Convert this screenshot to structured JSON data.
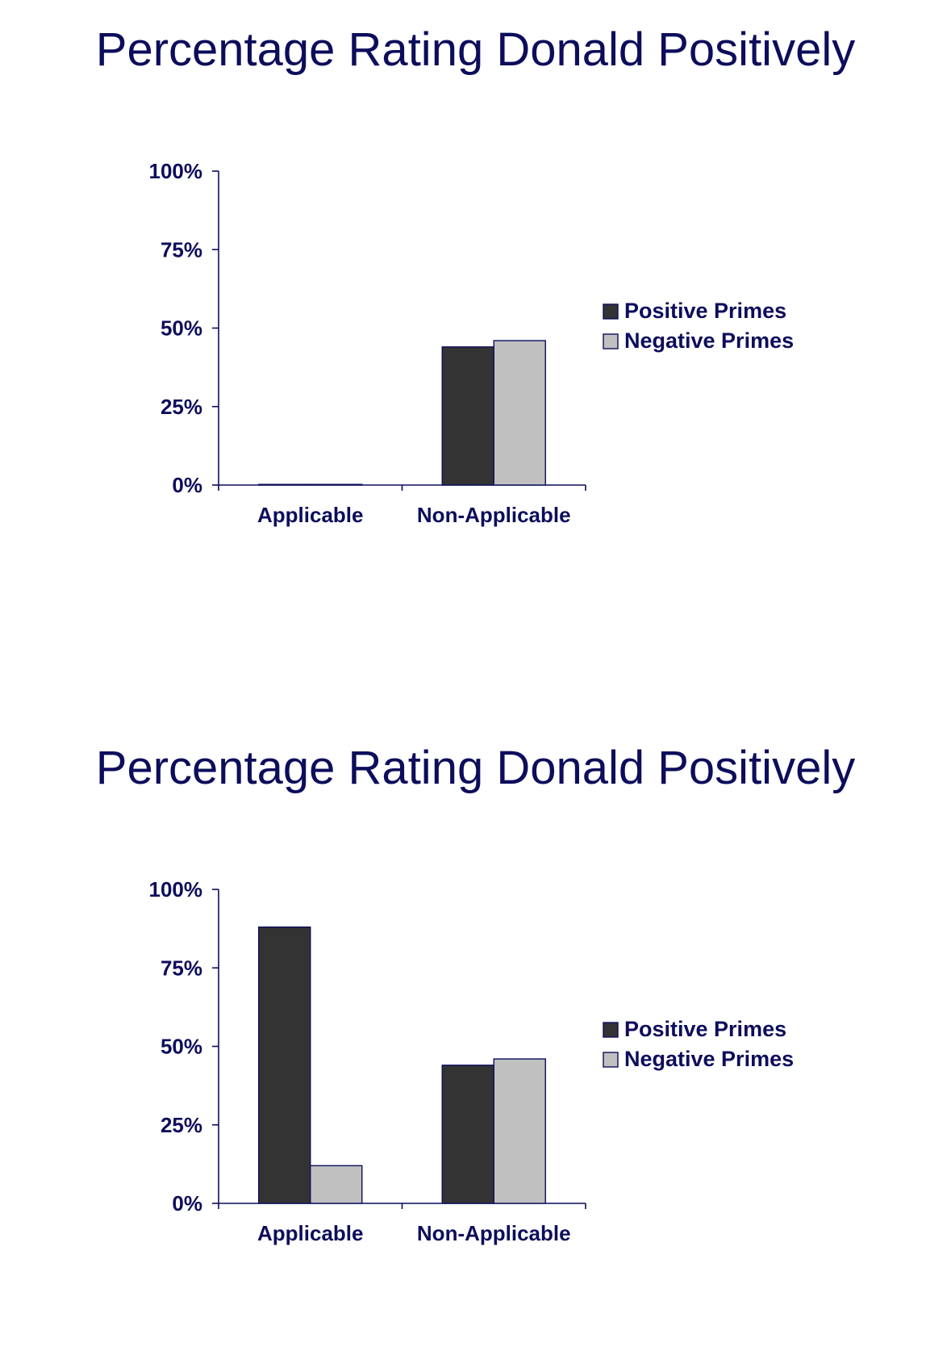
{
  "chart_data": [
    {
      "type": "bar",
      "title": "Percentage Rating Donald Positively",
      "categories": [
        "Applicable",
        "Non-Applicable"
      ],
      "series": [
        {
          "name": "Positive Primes",
          "values": [
            0,
            44
          ],
          "color": "#333333"
        },
        {
          "name": "Negative Primes",
          "values": [
            0,
            46
          ],
          "color": "#c0c0c0"
        }
      ],
      "ylim": [
        0,
        100
      ],
      "yticks": [
        "0%",
        "25%",
        "50%",
        "75%",
        "100%"
      ],
      "ytick_values": [
        0,
        25,
        50,
        75,
        100
      ],
      "xlabel": "",
      "ylabel": "",
      "grid": false,
      "legend": "right"
    },
    {
      "type": "bar",
      "title": "Percentage Rating Donald Positively",
      "categories": [
        "Applicable",
        "Non-Applicable"
      ],
      "series": [
        {
          "name": "Positive Primes",
          "values": [
            88,
            44
          ],
          "color": "#333333"
        },
        {
          "name": "Negative Primes",
          "values": [
            12,
            46
          ],
          "color": "#c0c0c0"
        }
      ],
      "ylim": [
        0,
        100
      ],
      "yticks": [
        "0%",
        "25%",
        "50%",
        "75%",
        "100%"
      ],
      "ytick_values": [
        0,
        25,
        50,
        75,
        100
      ],
      "xlabel": "",
      "ylabel": "",
      "grid": false,
      "legend": "right"
    }
  ]
}
